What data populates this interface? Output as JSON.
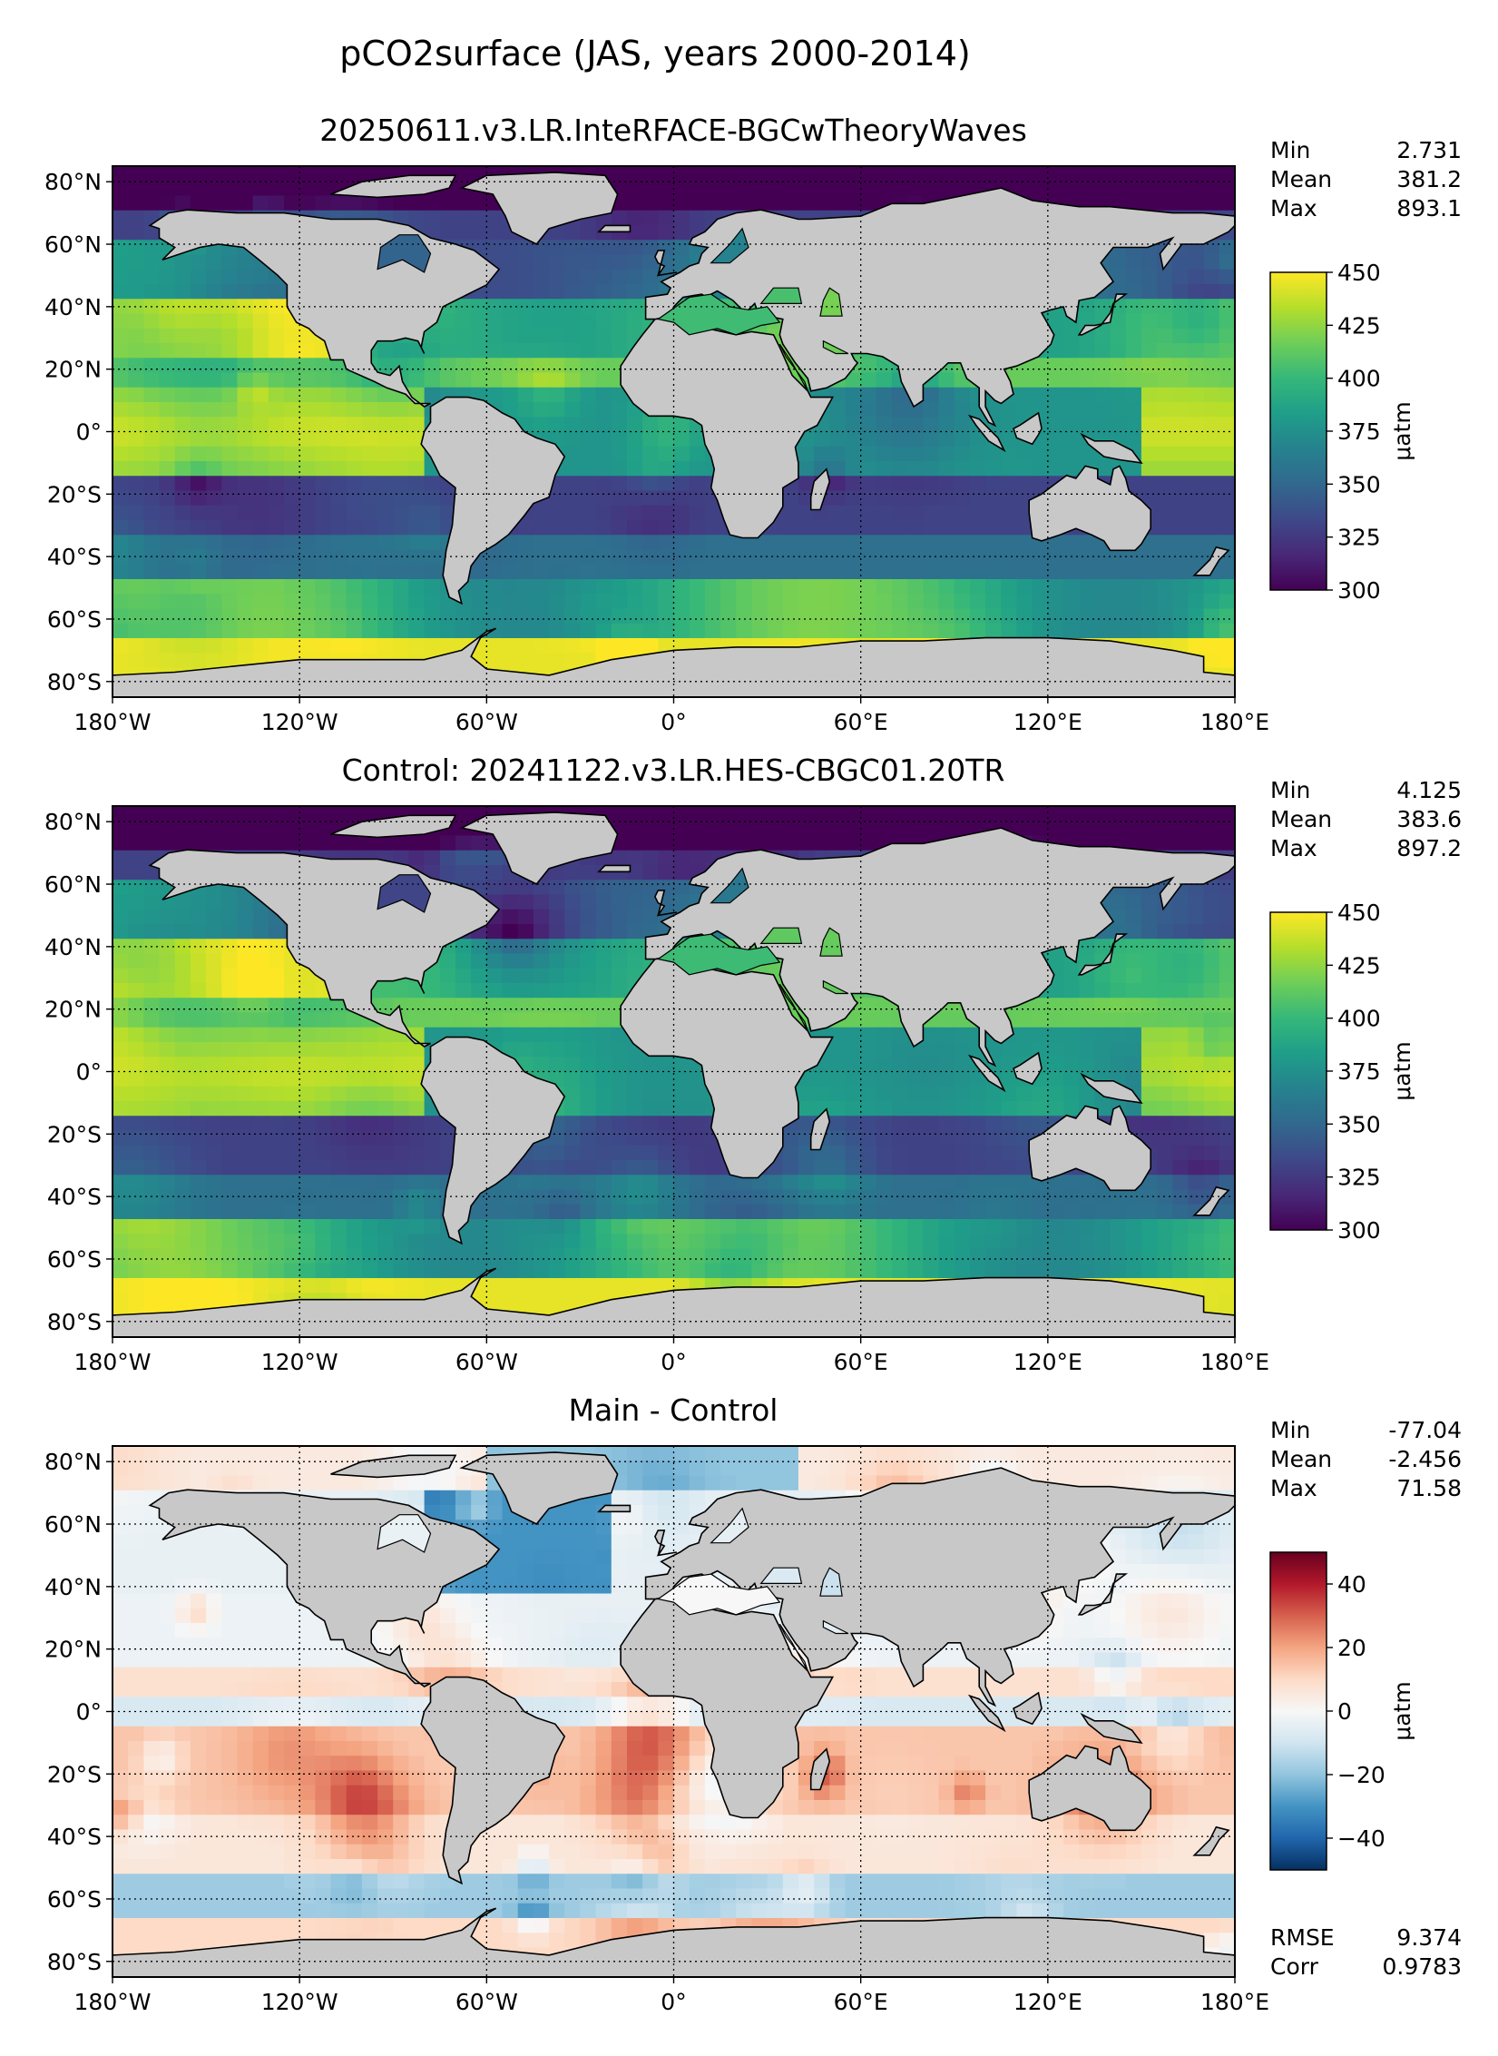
{
  "figure": {
    "title": "pCO2surface (JAS, years 2000-2014)"
  },
  "chart_data": [
    {
      "type": "heatmap",
      "title": "20250611.v3.LR.InteRFACE-BGCwTheoryWaves",
      "stats": {
        "min_label": "Min",
        "min": "2.731",
        "mean_label": "Mean",
        "mean": "381.2",
        "max_label": "Max",
        "max": "893.1"
      },
      "colormap": "viridis",
      "colorbar": {
        "ticks": [
          "450",
          "425",
          "400",
          "375",
          "350",
          "325",
          "300"
        ],
        "tick_values": [
          450,
          425,
          400,
          375,
          350,
          325,
          300
        ],
        "range": [
          300,
          450
        ],
        "label": "μatm"
      },
      "x_ticks": [
        "180°W",
        "120°W",
        "60°W",
        "0°",
        "60°E",
        "120°E",
        "180°E"
      ],
      "y_ticks": [
        "80°N",
        "60°N",
        "40°N",
        "20°N",
        "0°",
        "20°S",
        "40°S",
        "60°S",
        "80°S"
      ]
    },
    {
      "type": "heatmap",
      "title": "Control: 20241122.v3.LR.HES-CBGC01.20TR",
      "stats": {
        "min_label": "Min",
        "min": "4.125",
        "mean_label": "Mean",
        "mean": "383.6",
        "max_label": "Max",
        "max": "897.2"
      },
      "colormap": "viridis",
      "colorbar": {
        "ticks": [
          "450",
          "425",
          "400",
          "375",
          "350",
          "325",
          "300"
        ],
        "tick_values": [
          450,
          425,
          400,
          375,
          350,
          325,
          300
        ],
        "range": [
          300,
          450
        ],
        "label": "μatm"
      },
      "x_ticks": [
        "180°W",
        "120°W",
        "60°W",
        "0°",
        "60°E",
        "120°E",
        "180°E"
      ],
      "y_ticks": [
        "80°N",
        "60°N",
        "40°N",
        "20°N",
        "0°",
        "20°S",
        "40°S",
        "60°S",
        "80°S"
      ]
    },
    {
      "type": "heatmap",
      "title": "Main - Control",
      "stats": {
        "min_label": "Min",
        "min": "-77.04",
        "mean_label": "Mean",
        "mean": "-2.456",
        "max_label": "Max",
        "max": "71.58"
      },
      "colormap": "RdBu_r",
      "colorbar": {
        "ticks": [
          "40",
          "20",
          "0",
          "−20",
          "−40"
        ],
        "tick_values": [
          40,
          20,
          0,
          -20,
          -40
        ],
        "range": [
          -50,
          50
        ],
        "label": "μatm"
      },
      "extra_stats": {
        "rmse_label": "RMSE",
        "rmse": "9.374",
        "corr_label": "Corr",
        "corr": "0.9783"
      },
      "x_ticks": [
        "180°W",
        "120°W",
        "60°W",
        "0°",
        "60°E",
        "120°E",
        "180°E"
      ],
      "y_ticks": [
        "80°N",
        "60°N",
        "40°N",
        "20°N",
        "0°",
        "20°S",
        "40°S",
        "60°S",
        "80°S"
      ]
    }
  ],
  "colors": {
    "land": "#c8c8c8",
    "viridis": [
      "#440154",
      "#482878",
      "#3e4989",
      "#31688e",
      "#26828e",
      "#1f9e89",
      "#35b779",
      "#6ece58",
      "#b5de2b",
      "#fde725"
    ],
    "rdbu": [
      "#053061",
      "#2166ac",
      "#4393c3",
      "#92c5de",
      "#d1e5f0",
      "#f7f7f7",
      "#fddbc7",
      "#f4a582",
      "#d6604d",
      "#b2182b",
      "#67001f"
    ]
  }
}
